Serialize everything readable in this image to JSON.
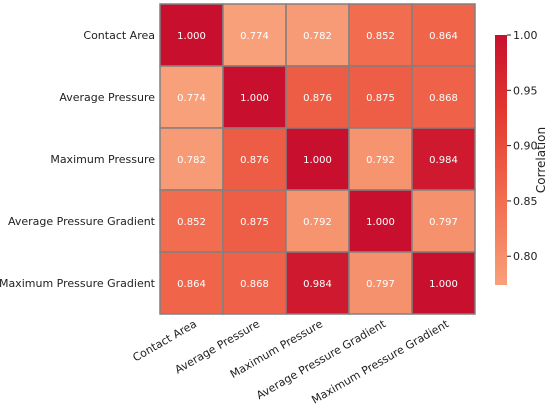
{
  "chart_data": {
    "type": "heatmap",
    "title": "",
    "row_labels": [
      "Contact Area",
      "Average Pressure",
      "Maximum Pressure",
      "Average Pressure Gradient",
      "Maximum Pressure Gradient"
    ],
    "col_labels": [
      "Contact Area",
      "Average Pressure",
      "Maximum Pressure",
      "Average Pressure Gradient",
      "Maximum Pressure Gradient"
    ],
    "values": [
      [
        1.0,
        0.774,
        0.782,
        0.852,
        0.864
      ],
      [
        0.774,
        1.0,
        0.876,
        0.875,
        0.868
      ],
      [
        0.782,
        0.876,
        1.0,
        0.792,
        0.984
      ],
      [
        0.852,
        0.875,
        0.792,
        1.0,
        0.797
      ],
      [
        0.864,
        0.868,
        0.984,
        0.797,
        1.0
      ]
    ],
    "value_format": "3 decimals",
    "colorbar": {
      "label": "Correlation",
      "ticks": [
        "0.80",
        "0.85",
        "0.90",
        "0.95",
        "1.00"
      ],
      "min": 0.774,
      "max": 1.0,
      "color_low": "#f8a07a",
      "color_high": "#c8102e"
    },
    "cell_border_color": "#808080",
    "cell_text_color": "#ffffff"
  }
}
